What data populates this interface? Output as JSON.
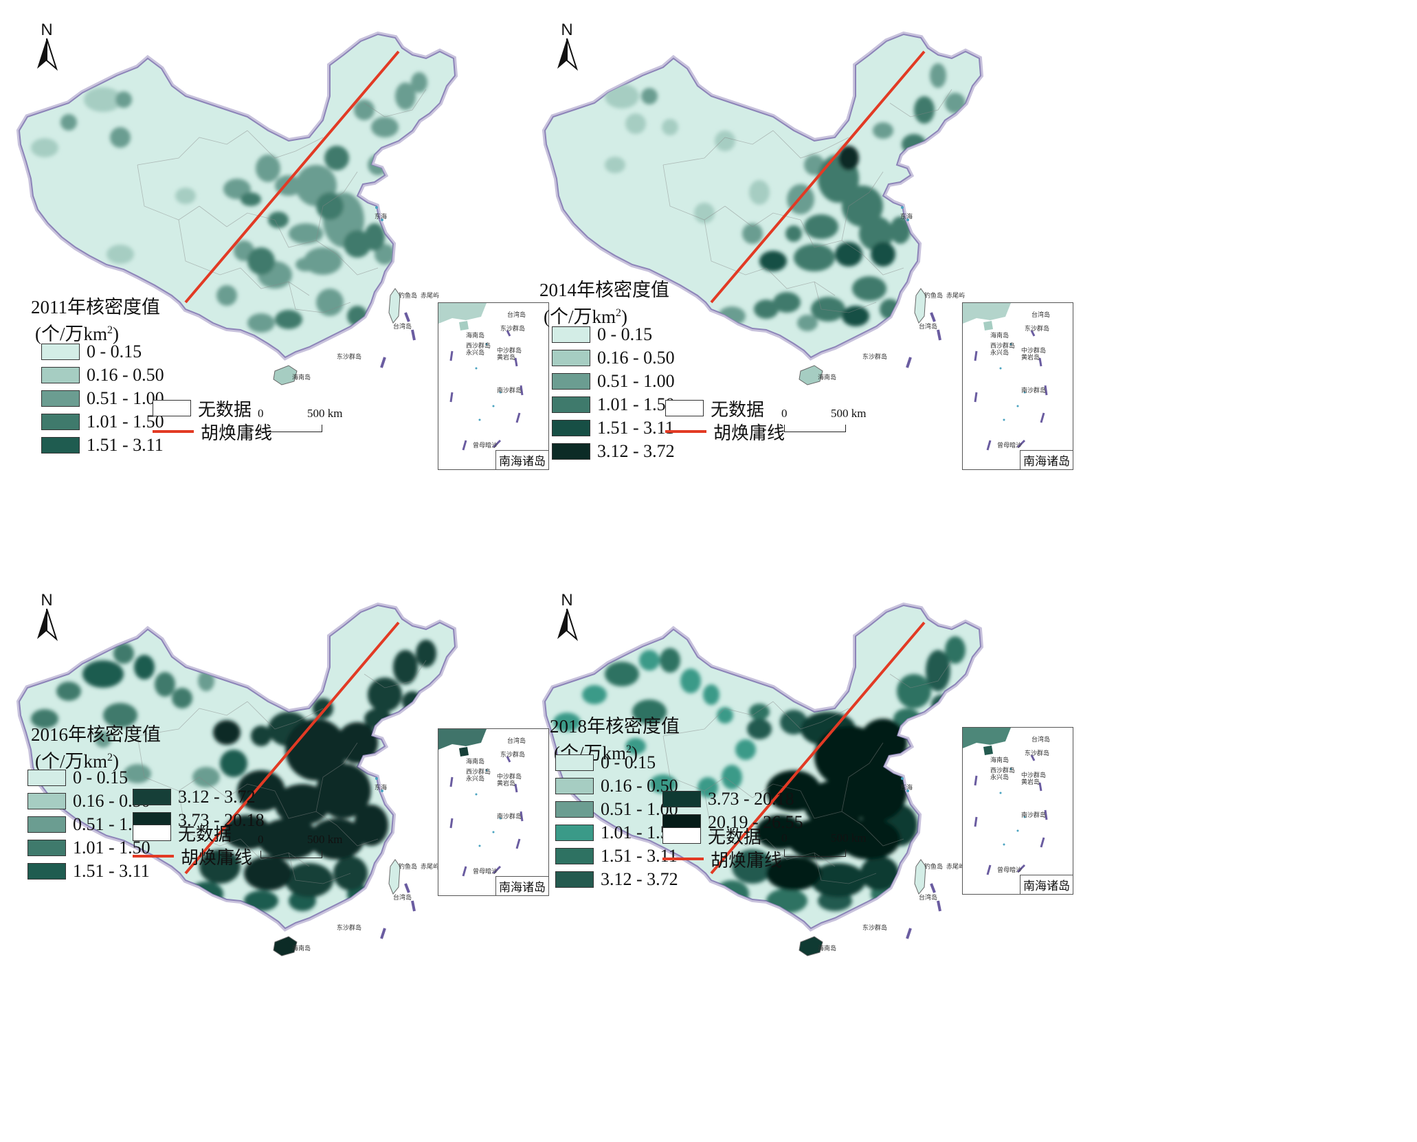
{
  "colors": {
    "c1": "#d3ede6",
    "c2": "#a6cdc2",
    "c3": "#6b9d91",
    "c4": "#3f8a7a",
    "c5": "#2e7262",
    "c6": "#174f45",
    "c7": "#0f3a32",
    "c8": "#0a2622",
    "hu_line": "#e23a24",
    "border": "#9a8fc0"
  },
  "common": {
    "north_label": "N",
    "scale_zero": "0",
    "scale_dist": "500 km",
    "inset_label": "南海诸岛",
    "no_data_label": "无数据",
    "hu_line_label": "胡焕庸线",
    "unit_label": "(个/万km",
    "unit_sup": "2",
    "unit_close": ")",
    "inset_places": [
      "台湾岛",
      "海南岛",
      "东沙群岛",
      "西沙群岛",
      "永兴岛",
      "中沙群岛",
      "黄岩岛",
      "南沙群岛",
      "曾母暗沙"
    ],
    "map_places": [
      "钓鱼岛",
      "赤尾屿",
      "台湾岛",
      "东沙群岛",
      "海南岛",
      "东海",
      "黄海"
    ]
  },
  "panels": [
    {
      "title": "2011年核密度值",
      "legend": [
        {
          "label": "0 - 0.15",
          "color": "#d3ede6"
        },
        {
          "label": "0.16 - 0.50",
          "color": "#a6cdc2"
        },
        {
          "label": "0.51 - 1.00",
          "color": "#6b9d91"
        },
        {
          "label": "1.01 - 1.50",
          "color": "#3f7a6c"
        },
        {
          "label": "1.51 - 3.11",
          "color": "#1f5c50"
        }
      ]
    },
    {
      "title": "2014年核密度值",
      "legend": [
        {
          "label": "0 - 0.15",
          "color": "#d3ede6"
        },
        {
          "label": "0.16 - 0.50",
          "color": "#a6cdc2"
        },
        {
          "label": "0.51 - 1.00",
          "color": "#6b9d91"
        },
        {
          "label": "1.01 - 1.50",
          "color": "#3f7a6c"
        },
        {
          "label": "1.51 - 3.11",
          "color": "#174f45"
        },
        {
          "label": "3.12 - 3.72",
          "color": "#0c2b26"
        }
      ]
    },
    {
      "title": "2016年核密度值",
      "legend": [
        {
          "label": "0 - 0.15",
          "color": "#d3ede6"
        },
        {
          "label": "0.16 - 0.50",
          "color": "#a6cdc2"
        },
        {
          "label": "0.51 - 1.00",
          "color": "#6b9d91"
        },
        {
          "label": "1.01 - 1.50",
          "color": "#3f7a6c"
        },
        {
          "label": "1.51 - 3.11",
          "color": "#1f5c50"
        },
        {
          "label": "3.12 - 3.72",
          "color": "#163f38"
        },
        {
          "label": "3.73 - 20.18",
          "color": "#0c2b26"
        }
      ]
    },
    {
      "title": "2018年核密度值",
      "legend": [
        {
          "label": "0 - 0.15",
          "color": "#d3ede6"
        },
        {
          "label": "0.16 - 0.50",
          "color": "#a6cdc2"
        },
        {
          "label": "0.51 - 1.00",
          "color": "#6b9d91"
        },
        {
          "label": "1.01 - 1.50",
          "color": "#3a9a88"
        },
        {
          "label": "1.51 - 3.11",
          "color": "#2e7262"
        },
        {
          "label": "3.12 - 3.72",
          "color": "#245a4f"
        },
        {
          "label": "3.73 - 20.18",
          "color": "#0f3a32"
        },
        {
          "label": "20.19 - 26.55",
          "color": "#061c18"
        }
      ]
    }
  ]
}
